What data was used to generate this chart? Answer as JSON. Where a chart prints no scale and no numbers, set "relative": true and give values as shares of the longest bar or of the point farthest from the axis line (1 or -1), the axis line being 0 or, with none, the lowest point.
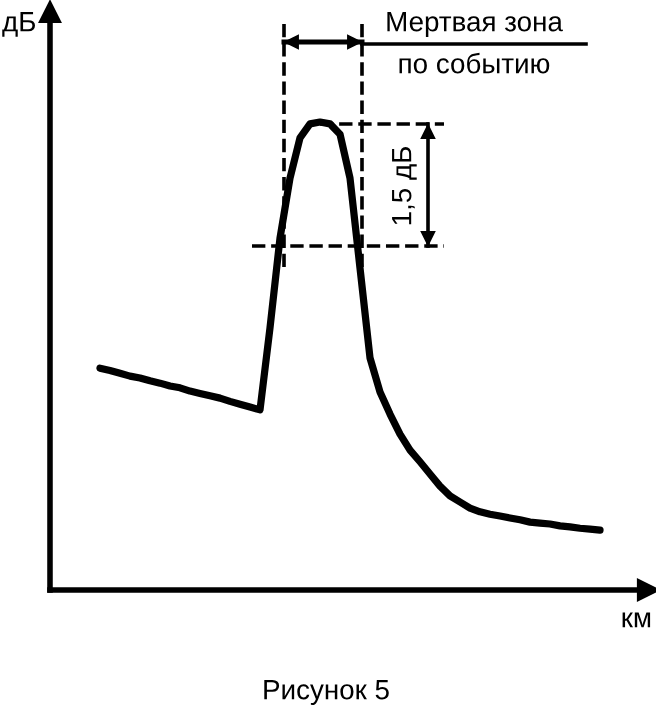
{
  "chart_data": {
    "type": "line",
    "relative": true,
    "xlabel": "км",
    "ylabel": "дБ",
    "grid": false,
    "legend": false,
    "marker": "none",
    "line_style": "solid",
    "categories": [
      null,
      null,
      null,
      null,
      null,
      null,
      null,
      null,
      null,
      null,
      null,
      null,
      null,
      null,
      null,
      null,
      null,
      null,
      null,
      null,
      null,
      null,
      null,
      null,
      null,
      null,
      null,
      null,
      null,
      null,
      null,
      null,
      null,
      null,
      null,
      null,
      null,
      null,
      null,
      null,
      null,
      null,
      null,
      null,
      null,
      null,
      null,
      null,
      null,
      null,
      null
    ],
    "series": [
      {
        "color": "#000000",
        "values": [
          0.474,
          0.469,
          0.463,
          0.457,
          0.453,
          0.447,
          0.442,
          0.436,
          0.432,
          0.425,
          0.42,
          0.415,
          0.41,
          0.403,
          0.397,
          0.391,
          0.385,
          0.56,
          0.752,
          0.88,
          0.966,
          0.996,
          1,
          0.996,
          0.974,
          0.88,
          0.688,
          0.496,
          0.423,
          0.376,
          0.333,
          0.299,
          0.274,
          0.248,
          0.222,
          0.201,
          0.188,
          0.175,
          0.167,
          0.162,
          0.158,
          0.154,
          0.15,
          0.145,
          0.143,
          0.141,
          0.137,
          0.135,
          0.132,
          0.13,
          0.128
        ]
      }
    ],
    "annotations": [
      "Мертвая зона",
      "по событию",
      "1,5 дБ",
      "Рисунок 5"
    ]
  }
}
